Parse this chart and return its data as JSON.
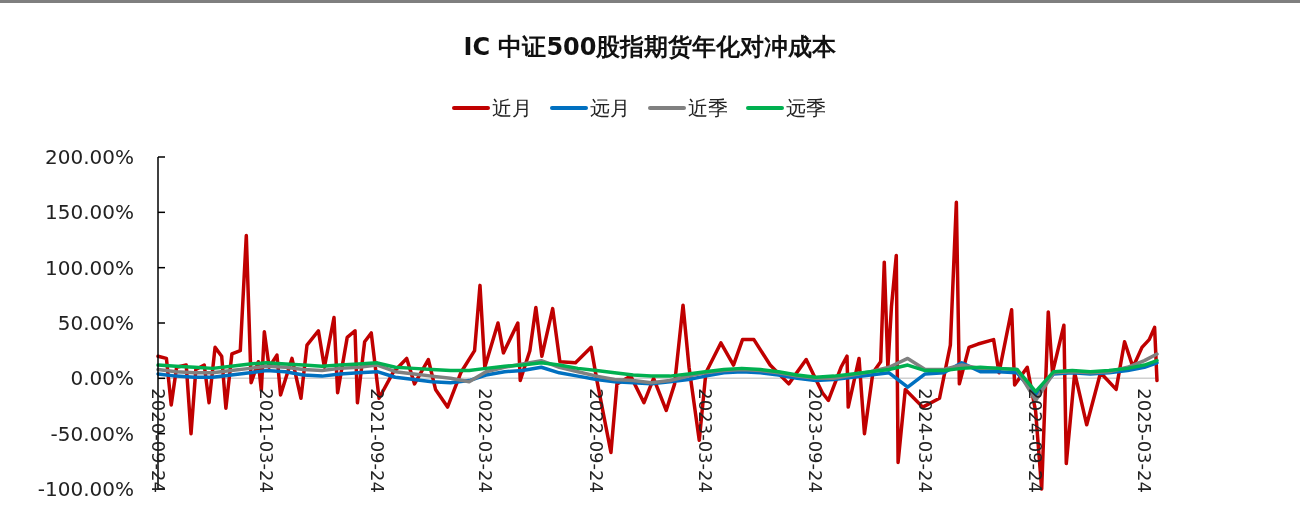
{
  "chart_data": {
    "type": "line",
    "title": "IC 中证500股指期货年化对冲成本",
    "legend": "top",
    "xlim": [
      "2020-09-24",
      "2025-04-14"
    ],
    "xticks": [
      "2020-09-24",
      "2021-03-24",
      "2021-09-24",
      "2022-03-24",
      "2022-09-24",
      "2023-03-24",
      "2023-09-24",
      "2024-03-24",
      "2024-09-24",
      "2025-03-24"
    ],
    "ylim": [
      -100,
      200
    ],
    "yticks": [
      {
        "value": -100,
        "label": "-100.00%"
      },
      {
        "value": -50,
        "label": "-50.00%"
      },
      {
        "value": 0,
        "label": "0.00%"
      },
      {
        "value": 50,
        "label": "50.00%"
      },
      {
        "value": 100,
        "label": "100.00%"
      },
      {
        "value": 150,
        "label": "150.00%"
      },
      {
        "value": 200,
        "label": "200.00%"
      }
    ],
    "x": [
      "2020-09-24",
      "2020-10-24",
      "2020-11-24",
      "2020-12-24",
      "2021-01-24",
      "2021-02-24",
      "2021-03-24",
      "2021-04-24",
      "2021-05-24",
      "2021-06-24",
      "2021-07-24",
      "2021-08-24",
      "2021-09-24",
      "2021-10-24",
      "2021-11-24",
      "2021-12-24",
      "2022-01-24",
      "2022-02-24",
      "2022-03-24",
      "2022-04-24",
      "2022-05-24",
      "2022-06-24",
      "2022-07-24",
      "2022-08-24",
      "2022-09-24",
      "2022-10-24",
      "2022-11-24",
      "2022-12-24",
      "2023-01-24",
      "2023-02-24",
      "2023-03-24",
      "2023-04-24",
      "2023-05-24",
      "2023-06-24",
      "2023-07-24",
      "2023-08-24",
      "2023-09-24",
      "2023-10-24",
      "2023-11-24",
      "2023-12-24",
      "2024-01-24",
      "2024-02-24",
      "2024-03-24",
      "2024-04-24",
      "2024-05-24",
      "2024-06-24",
      "2024-07-24",
      "2024-08-24",
      "2024-09-24",
      "2024-10-24",
      "2024-11-24",
      "2024-12-24",
      "2025-01-24",
      "2025-02-24",
      "2025-03-24",
      "2025-04-14"
    ],
    "series": [
      {
        "name": "近月",
        "color": "#c00000",
        "x": [
          "2020-09-24",
          "2020-10-08",
          "2020-10-16",
          "2020-10-25",
          "2020-11-10",
          "2020-11-18",
          "2020-11-26",
          "2020-12-10",
          "2020-12-18",
          "2020-12-28",
          "2021-01-08",
          "2021-01-15",
          "2021-01-25",
          "2021-02-08",
          "2021-02-18",
          "2021-02-26",
          "2021-03-10",
          "2021-03-15",
          "2021-03-20",
          "2021-03-28",
          "2021-04-10",
          "2021-04-16",
          "2021-05-05",
          "2021-05-20",
          "2021-05-30",
          "2021-06-18",
          "2021-06-28",
          "2021-07-14",
          "2021-07-20",
          "2021-08-05",
          "2021-08-18",
          "2021-08-22",
          "2021-09-03",
          "2021-09-14",
          "2021-09-27",
          "2021-10-20",
          "2021-11-12",
          "2021-11-25",
          "2021-12-18",
          "2021-12-30",
          "2022-01-19",
          "2022-02-10",
          "2022-03-05",
          "2022-03-14",
          "2022-03-22",
          "2022-04-13",
          "2022-04-22",
          "2022-05-16",
          "2022-05-20",
          "2022-06-05",
          "2022-06-15",
          "2022-06-25",
          "2022-07-13",
          "2022-07-25",
          "2022-08-20",
          "2022-09-15",
          "2022-09-25",
          "2022-10-18",
          "2022-10-28",
          "2022-11-20",
          "2022-12-12",
          "2022-12-28",
          "2023-01-18",
          "2023-02-01",
          "2023-02-15",
          "2023-02-25",
          "2023-03-14",
          "2023-03-25",
          "2023-04-19",
          "2023-05-10",
          "2023-05-25",
          "2023-06-13",
          "2023-07-10",
          "2023-08-10",
          "2023-09-08",
          "2023-09-25",
          "2023-10-05",
          "2023-10-15",
          "2023-11-05",
          "2023-11-15",
          "2023-11-17",
          "2023-12-05",
          "2023-12-14",
          "2023-12-28",
          "2024-01-10",
          "2024-01-16",
          "2024-01-22",
          "2024-01-28",
          "2024-02-05",
          "2024-02-08",
          "2024-02-20",
          "2024-03-20",
          "2024-04-17",
          "2024-05-05",
          "2024-05-15",
          "2024-05-20",
          "2024-06-05",
          "2024-06-20",
          "2024-07-16",
          "2024-07-25",
          "2024-08-15",
          "2024-08-20",
          "2024-09-10",
          "2024-09-24",
          "2024-10-04",
          "2024-10-15",
          "2024-10-22",
          "2024-11-10",
          "2024-11-14",
          "2024-11-28",
          "2024-12-18",
          "2025-01-10",
          "2025-02-05",
          "2025-02-19",
          "2025-03-05",
          "2025-03-20",
          "2025-04-01",
          "2025-04-10",
          "2025-04-14"
        ],
        "values": [
          20,
          18,
          -24,
          10,
          12,
          -50,
          8,
          12,
          -22,
          28,
          20,
          -27,
          22,
          25,
          129,
          -4,
          15,
          -11,
          42,
          10,
          21,
          -15,
          18,
          -18,
          30,
          43,
          10,
          55,
          -13,
          37,
          43,
          -22,
          33,
          41,
          -18,
          5,
          18,
          -5,
          17,
          -10,
          -26,
          5,
          25,
          84,
          10,
          50,
          23,
          50,
          -2,
          25,
          64,
          20,
          63,
          15,
          14,
          28,
          -3,
          -67,
          -5,
          2,
          -22,
          0,
          -29,
          -5,
          66,
          10,
          -56,
          5,
          32,
          12,
          35,
          35,
          12,
          -5,
          17,
          -2,
          -13,
          -20,
          10,
          20,
          -26,
          18,
          -50,
          5,
          15,
          105,
          10,
          65,
          111,
          -76,
          -10,
          -26,
          -18,
          30,
          159,
          -5,
          28,
          31,
          35,
          5,
          62,
          -6,
          10,
          -30,
          -100,
          60,
          5,
          48,
          -77,
          5,
          -42,
          5,
          -10,
          33,
          10,
          28,
          35,
          46,
          -2
        ]
      },
      {
        "name": "远月",
        "color": "#0070c0",
        "values": [
          4,
          2,
          1,
          1,
          3,
          5,
          7,
          6,
          3,
          2,
          4,
          5,
          6,
          1,
          -1,
          -3,
          -4,
          -2,
          3,
          6,
          7,
          10,
          5,
          2,
          -1,
          -3,
          -4,
          -5,
          -3,
          -1,
          2,
          5,
          6,
          5,
          3,
          0,
          -2,
          -1,
          1,
          3,
          5,
          -8,
          4,
          5,
          14,
          6,
          6,
          5,
          -15,
          4,
          5,
          4,
          5,
          7,
          10,
          14
        ]
      },
      {
        "name": "近季",
        "color": "#808080",
        "values": [
          8,
          6,
          5,
          5,
          7,
          9,
          11,
          10,
          8,
          7,
          9,
          10,
          12,
          6,
          4,
          2,
          0,
          -3,
          6,
          10,
          13,
          16,
          10,
          6,
          2,
          -1,
          -2,
          -4,
          -2,
          2,
          5,
          7,
          8,
          7,
          5,
          2,
          0,
          0,
          3,
          6,
          10,
          18,
          8,
          8,
          12,
          9,
          9,
          8,
          -20,
          5,
          6,
          5,
          6,
          10,
          16,
          22
        ]
      },
      {
        "name": "远季",
        "color": "#00b050",
        "values": [
          12,
          11,
          10,
          9,
          11,
          13,
          14,
          13,
          12,
          11,
          12,
          13,
          14,
          10,
          9,
          8,
          7,
          7,
          9,
          11,
          12,
          14,
          12,
          9,
          7,
          5,
          3,
          2,
          2,
          4,
          6,
          8,
          9,
          8,
          6,
          3,
          1,
          2,
          4,
          6,
          8,
          12,
          7,
          7,
          9,
          10,
          9,
          8,
          -12,
          6,
          7,
          6,
          7,
          9,
          12,
          16
        ]
      }
    ]
  }
}
